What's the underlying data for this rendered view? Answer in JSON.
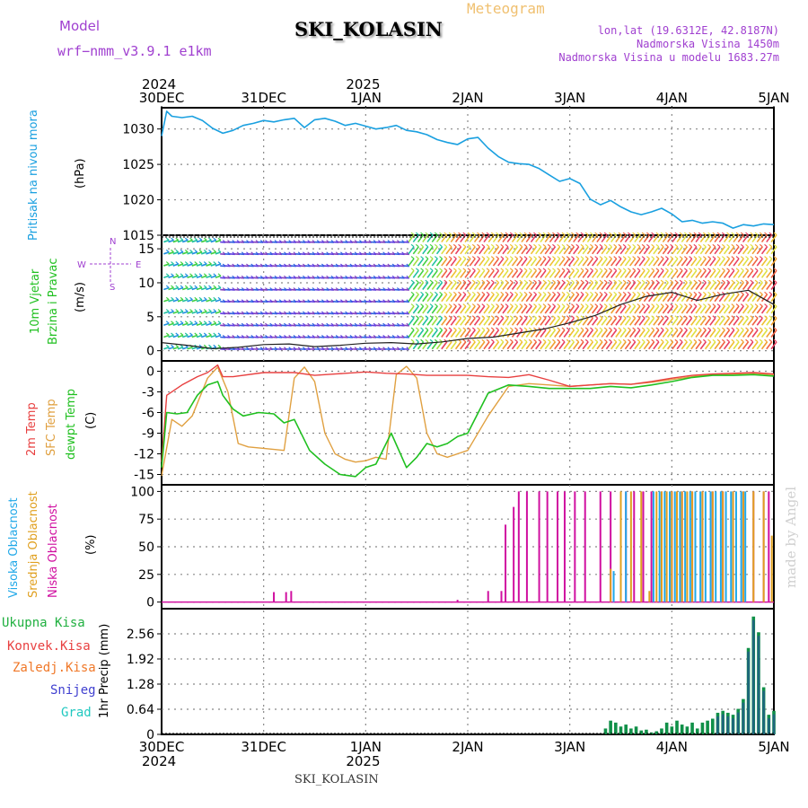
{
  "header": {
    "model_label": "Model",
    "model_name": "wrf−nmm_v3.9.1  e1km",
    "title": "SKI_KOLASIN",
    "meteogram_label": "Meteogram",
    "lonlat": "lon,lat (19.6312E, 42.8187N)",
    "elevation": "Nadmorska Visina 1450m",
    "model_elevation": "Nadmorska Visina u modelu 1683.27m",
    "footer_station": "SKI_KOLASIN",
    "watermark": "made by Angel"
  },
  "colors": {
    "pressure": "#1aa0e0",
    "temp2m": "#e84040",
    "sfc_temp": "#e0a040",
    "dewpt": "#20c020",
    "high_cloud": "#20a8e8",
    "mid_cloud": "#e0a020",
    "low_cloud": "#d010a0",
    "total_precip": "#109048",
    "snow": "#3030c0",
    "model_label": "#a040d0"
  },
  "time_axis": {
    "top_years": [
      {
        "label": "2024",
        "day": 0
      },
      {
        "label": "2025",
        "day": 2
      }
    ],
    "bottom_years": [
      {
        "label": "2024",
        "day": 0
      },
      {
        "label": "2025",
        "day": 2
      }
    ],
    "days": [
      "30DEC",
      "31DEC",
      "1JAN",
      "2JAN",
      "3JAN",
      "4JAN",
      "5JAN"
    ]
  },
  "panels": {
    "pressure": {
      "ylabels": [
        "Pritisak na nivou mora",
        "(hPa)"
      ],
      "ticks": [
        "1030",
        "1025",
        "1020",
        "1015"
      ]
    },
    "wind": {
      "ylabels": [
        "10m Vjetar",
        "Brzina i Pravac",
        "(m/s)"
      ],
      "ticks": [
        "15",
        "10",
        "5",
        "0"
      ],
      "compass": [
        "W",
        "E",
        "N",
        "S"
      ]
    },
    "temp": {
      "ylabels": [
        "2m Temp",
        "SFC Temp",
        "dewpt Temp",
        "(C)"
      ],
      "ticks": [
        "0",
        "-3",
        "-6",
        "-9",
        "-12",
        "-15"
      ]
    },
    "cloud": {
      "ylabels": [
        "Visoka Oblacnost",
        "Srednja Oblacnost",
        "Niska Oblacnost",
        "(%)"
      ],
      "ticks": [
        "100",
        "75",
        "50",
        "25",
        "0"
      ]
    },
    "precip": {
      "legend": [
        "Ukupna Kisa",
        "Konvek.Kisa",
        "Zaledj.Kisa",
        "Snijeg",
        "Grad"
      ],
      "legend_colors": [
        "#20b040",
        "#e84040",
        "#f07828",
        "#4040d0",
        "#20c8c0"
      ],
      "ylabel": "1hr Precip (mm)",
      "ticks": [
        "2.56",
        "1.92",
        "1.28",
        "0.64",
        "0"
      ]
    }
  },
  "chart_data": [
    {
      "type": "line",
      "title": "",
      "ylabel": "Pritisak na nivou mora (hPa)",
      "x_unit": "days since 30DEC 2024 00 UTC",
      "ylim": [
        1015,
        1033
      ],
      "grid": true,
      "series": [
        {
          "name": "Pritisak na nivou mora",
          "x": [
            0.0,
            0.05,
            0.1,
            0.2,
            0.3,
            0.4,
            0.5,
            0.6,
            0.7,
            0.8,
            0.9,
            1.0,
            1.1,
            1.2,
            1.3,
            1.4,
            1.5,
            1.6,
            1.7,
            1.8,
            1.9,
            2.0,
            2.1,
            2.2,
            2.3,
            2.4,
            2.5,
            2.6,
            2.7,
            2.8,
            2.9,
            3.0,
            3.1,
            3.2,
            3.3,
            3.4,
            3.5,
            3.6,
            3.7,
            3.8,
            3.9,
            4.0,
            4.1,
            4.2,
            4.3,
            4.4,
            4.5,
            4.6,
            4.7,
            4.8,
            4.9,
            5.0,
            5.1,
            5.2,
            5.3,
            5.4,
            5.5,
            5.6,
            5.7,
            5.8,
            5.9,
            6.0
          ],
          "values": [
            1029,
            1032.5,
            1031.8,
            1031.6,
            1031.8,
            1031.2,
            1030.1,
            1029.4,
            1029.8,
            1030.5,
            1030.8,
            1031.2,
            1031.0,
            1031.3,
            1031.5,
            1030.2,
            1031.3,
            1031.5,
            1031.1,
            1030.5,
            1030.8,
            1030.4,
            1030.0,
            1030.2,
            1030.5,
            1029.8,
            1029.6,
            1029.2,
            1028.5,
            1028.1,
            1027.8,
            1028.6,
            1028.8,
            1027.3,
            1026.1,
            1025.3,
            1025.1,
            1025.0,
            1024.4,
            1023.5,
            1022.6,
            1023.0,
            1022.3,
            1020.1,
            1019.3,
            1019.9,
            1019.0,
            1018.3,
            1017.9,
            1018.3,
            1018.8,
            1018.0,
            1016.9,
            1017.1,
            1016.7,
            1016.9,
            1016.7,
            1016.0,
            1016.5,
            1016.3,
            1016.6,
            1016.5
          ]
        }
      ]
    },
    {
      "type": "line",
      "title": "",
      "ylabel": "10m Vjetar Brzina i Pravac (m/s)",
      "x_unit": "days since 30DEC 2024 00 UTC",
      "ylim": [
        -1.5,
        17
      ],
      "grid": true,
      "series": [
        {
          "name": "10m Vjetar",
          "x": [
            0,
            0.25,
            0.5,
            0.75,
            1.0,
            1.25,
            1.5,
            1.75,
            2.0,
            2.25,
            2.5,
            2.75,
            3.0,
            3.25,
            3.5,
            3.75,
            4.0,
            4.25,
            4.5,
            4.75,
            5.0,
            5.25,
            5.5,
            5.75,
            6.0
          ],
          "values": [
            1.2,
            0.8,
            0.3,
            0.5,
            0.9,
            1.0,
            0.6,
            0.8,
            1.1,
            1.2,
            1.0,
            1.3,
            1.8,
            2.0,
            2.6,
            3.2,
            4.1,
            5.2,
            6.8,
            8.0,
            8.6,
            7.4,
            8.3,
            8.9,
            6.8
          ]
        }
      ]
    },
    {
      "type": "line",
      "title": "",
      "ylabel": "Temp (C)",
      "x_unit": "days since 30DEC 2024 00 UTC",
      "ylim": [
        -16.5,
        1.5
      ],
      "grid": true,
      "series": [
        {
          "name": "2m Temp",
          "x": [
            0.0,
            0.05,
            0.2,
            0.35,
            0.45,
            0.55,
            0.6,
            0.7,
            1.0,
            1.3,
            1.5,
            1.7,
            2.0,
            2.2,
            2.4,
            2.6,
            2.8,
            3.0,
            3.2,
            3.4,
            3.5,
            3.6,
            3.8,
            4.0,
            4.2,
            4.4,
            4.6,
            4.8,
            5.0,
            5.2,
            5.4,
            5.6,
            5.8,
            6.0
          ],
          "values": [
            -13.2,
            -3.5,
            -2.0,
            -0.8,
            -0.2,
            0.9,
            -0.8,
            -0.8,
            -0.2,
            -0.2,
            -0.6,
            -0.4,
            -0.1,
            -0.3,
            -0.4,
            -0.6,
            -0.6,
            -0.6,
            -0.8,
            -0.9,
            -0.7,
            -0.5,
            -1.3,
            -2.2,
            -2.0,
            -1.8,
            -1.9,
            -1.5,
            -1.0,
            -0.6,
            -0.4,
            -0.3,
            -0.2,
            -0.4
          ]
        },
        {
          "name": "SFC Temp",
          "x": [
            0.0,
            0.1,
            0.2,
            0.3,
            0.45,
            0.55,
            0.65,
            0.75,
            0.85,
            1.0,
            1.2,
            1.3,
            1.4,
            1.5,
            1.6,
            1.7,
            1.8,
            1.9,
            2.0,
            2.1,
            2.2,
            2.3,
            2.4,
            2.5,
            2.6,
            2.7,
            2.8,
            2.9,
            3.0,
            3.2,
            3.4,
            3.6,
            3.8,
            4.0,
            4.2,
            4.4,
            4.6,
            4.8,
            5.0,
            5.2,
            5.4,
            5.6,
            5.8,
            6.0
          ],
          "values": [
            -15.2,
            -7.0,
            -8.0,
            -6.5,
            -1.0,
            0.6,
            -3.0,
            -10.5,
            -11.0,
            -11.2,
            -11.5,
            -1.0,
            0.6,
            -1.5,
            -9.0,
            -12.0,
            -12.8,
            -13.2,
            -13.0,
            -12.5,
            -12.8,
            -0.5,
            0.7,
            -1.0,
            -9.0,
            -12.0,
            -12.5,
            -12.0,
            -11.5,
            -6.5,
            -2.2,
            -1.8,
            -2.0,
            -2.2,
            -2.0,
            -1.8,
            -1.9,
            -1.6,
            -1.2,
            -0.8,
            -0.5,
            -0.4,
            -0.3,
            -0.5
          ]
        },
        {
          "name": "dewpt Temp",
          "x": [
            0.0,
            0.05,
            0.15,
            0.25,
            0.35,
            0.45,
            0.55,
            0.6,
            0.7,
            0.8,
            0.95,
            1.1,
            1.2,
            1.3,
            1.45,
            1.6,
            1.75,
            1.9,
            2.0,
            2.1,
            2.25,
            2.4,
            2.5,
            2.6,
            2.7,
            2.8,
            2.9,
            3.0,
            3.2,
            3.4,
            3.6,
            3.8,
            4.0,
            4.2,
            4.4,
            4.6,
            4.8,
            5.0,
            5.2,
            5.4,
            5.6,
            5.8,
            6.0
          ],
          "values": [
            -14.0,
            -6.0,
            -6.2,
            -6.0,
            -3.5,
            -2.0,
            -1.5,
            -3.5,
            -5.5,
            -6.5,
            -6.0,
            -6.2,
            -7.5,
            -7.0,
            -11.5,
            -13.5,
            -15.0,
            -15.3,
            -14.0,
            -13.5,
            -9.0,
            -14.0,
            -12.5,
            -10.5,
            -11.0,
            -10.5,
            -9.5,
            -9.0,
            -3.2,
            -2.0,
            -2.2,
            -2.5,
            -2.5,
            -2.5,
            -2.2,
            -2.4,
            -2.0,
            -1.5,
            -0.9,
            -0.6,
            -0.6,
            -0.5,
            -0.7
          ]
        }
      ]
    },
    {
      "type": "bar",
      "title": "",
      "ylabel": "Oblacnost (%)",
      "x_unit": "days since 30DEC 2024 00 UTC",
      "ylim": [
        0,
        100
      ],
      "grid": true,
      "series": [
        {
          "name": "Niska Oblacnost",
          "x": [
            1.1,
            1.22,
            1.27,
            2.9,
            3.2,
            3.33,
            3.37,
            3.45,
            3.5,
            3.58,
            3.7,
            3.78,
            3.88,
            3.95,
            4.05,
            4.15,
            4.3,
            4.4,
            4.55,
            4.63,
            4.72,
            4.8,
            4.9,
            5.0,
            5.1,
            5.2,
            5.3,
            5.4,
            5.5,
            5.6,
            5.7,
            5.8,
            5.9,
            5.95
          ],
          "values": [
            9,
            9,
            10,
            2,
            10,
            10,
            70,
            86,
            100,
            100,
            100,
            100,
            100,
            100,
            100,
            100,
            100,
            100,
            100,
            100,
            100,
            100,
            100,
            100,
            100,
            100,
            100,
            100,
            100,
            100,
            100,
            100,
            100,
            100
          ]
        },
        {
          "name": "Srednja Oblacnost",
          "x": [
            4.4,
            4.5,
            4.6,
            4.7,
            4.78,
            4.85,
            4.9,
            4.95,
            5.0,
            5.05,
            5.1,
            5.15,
            5.2,
            5.3,
            5.4,
            5.5,
            5.6,
            5.7,
            5.8,
            5.9,
            5.98
          ],
          "values": [
            30,
            100,
            100,
            100,
            10,
            100,
            100,
            100,
            100,
            100,
            100,
            100,
            100,
            100,
            100,
            100,
            100,
            100,
            100,
            100,
            60
          ]
        },
        {
          "name": "Visoka Oblacnost",
          "x": [
            4.43,
            4.55,
            4.82,
            4.88,
            4.93,
            4.98,
            5.03,
            5.08,
            5.13,
            5.18,
            5.23,
            5.28,
            5.33,
            5.38,
            5.43,
            5.48,
            5.53,
            5.58,
            5.63,
            5.68,
            5.72
          ],
          "values": [
            28,
            100,
            100,
            100,
            100,
            100,
            100,
            100,
            100,
            100,
            100,
            100,
            100,
            100,
            100,
            100,
            100,
            100,
            100,
            100,
            100
          ]
        }
      ]
    },
    {
      "type": "bar",
      "title": "",
      "ylabel": "1hr Precip (mm)",
      "x_unit": "days since 30DEC 2024 00 UTC",
      "ylim": [
        0,
        3.2
      ],
      "grid": true,
      "series": [
        {
          "name": "Ukupna Kisa",
          "x": [
            4.35,
            4.4,
            4.45,
            4.5,
            4.55,
            4.6,
            4.65,
            4.7,
            4.75,
            4.8,
            4.85,
            4.9,
            4.95,
            5.0,
            5.05,
            5.1,
            5.15,
            5.2,
            5.25,
            5.3,
            5.35,
            5.4,
            5.45,
            5.5,
            5.55,
            5.6,
            5.65,
            5.7,
            5.75,
            5.8,
            5.85,
            5.9,
            5.95,
            6.0
          ],
          "values": [
            0.15,
            0.35,
            0.3,
            0.2,
            0.25,
            0.15,
            0.2,
            0.1,
            0.12,
            0.05,
            0.08,
            0.15,
            0.3,
            0.2,
            0.35,
            0.25,
            0.2,
            0.3,
            0.15,
            0.3,
            0.35,
            0.4,
            0.55,
            0.6,
            0.55,
            0.5,
            0.65,
            0.9,
            2.2,
            3.0,
            2.6,
            1.2,
            0.5,
            0.6
          ]
        }
      ]
    }
  ]
}
